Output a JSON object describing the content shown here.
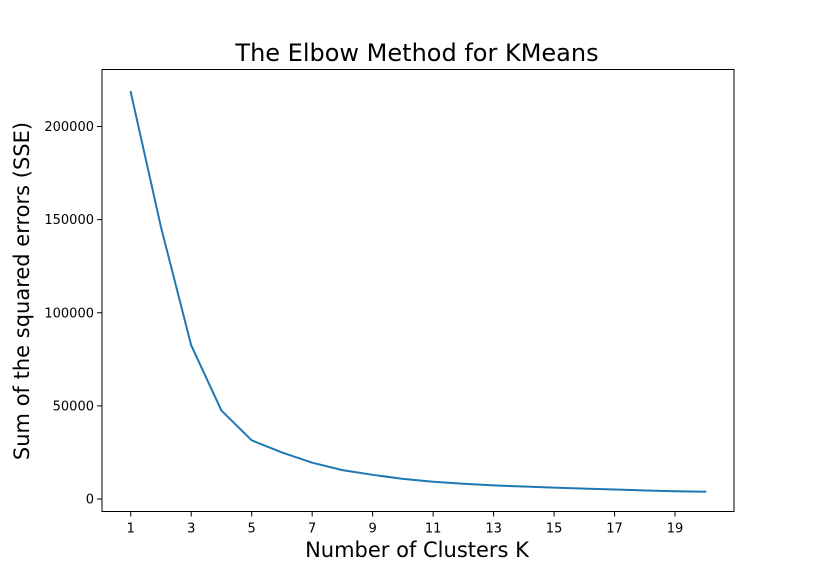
{
  "chart_data": {
    "type": "line",
    "title": "The Elbow Method for KMeans",
    "xlabel": "Number of Clusters K",
    "ylabel": "Sum of the squared errors (SSE)",
    "xlim": [
      0.05,
      20.95
    ],
    "ylim": [
      -6700,
      230600
    ],
    "x_ticks": [
      1,
      3,
      5,
      7,
      9,
      11,
      13,
      15,
      17,
      19
    ],
    "y_ticks": [
      0,
      50000,
      100000,
      150000,
      200000
    ],
    "x_tick_labels": [
      "1",
      "3",
      "5",
      "7",
      "9",
      "11",
      "13",
      "15",
      "17",
      "19"
    ],
    "y_tick_labels": [
      "0",
      "50000",
      "100000",
      "150000",
      "200000"
    ],
    "grid": false,
    "series": [
      {
        "color": "#1f77b4",
        "x": [
          1,
          2,
          3,
          4,
          5,
          6,
          7,
          8,
          9,
          10,
          11,
          12,
          13,
          14,
          15,
          16,
          17,
          18,
          19,
          20
        ],
        "y": [
          218500,
          146000,
          82500,
          47500,
          31500,
          25000,
          19500,
          15500,
          13000,
          10800,
          9300,
          8200,
          7300,
          6700,
          6100,
          5600,
          5100,
          4600,
          4200,
          3900
        ]
      }
    ]
  }
}
